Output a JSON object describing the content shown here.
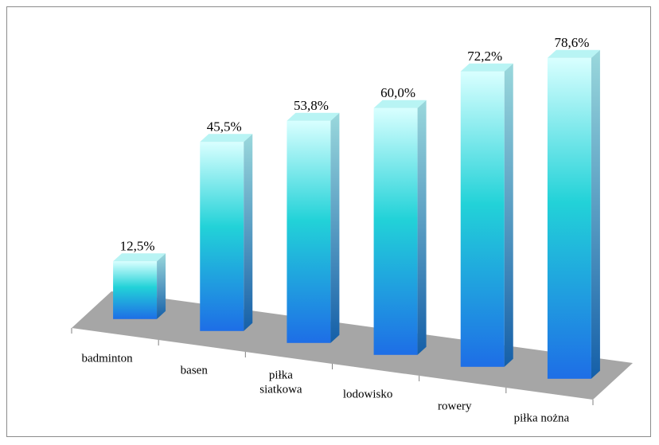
{
  "chart_data": {
    "type": "bar",
    "categories": [
      "badminton",
      "basen",
      "piłka siatkowa",
      "lodowisko",
      "rowery",
      "piłka nożna"
    ],
    "category_lines": [
      [
        "badminton"
      ],
      [
        "basen"
      ],
      [
        "piłka",
        "siatkowa"
      ],
      [
        "lodowisko"
      ],
      [
        "rowery"
      ],
      [
        "piłka nożna"
      ]
    ],
    "values": [
      12.5,
      45.5,
      53.8,
      60.0,
      72.2,
      78.6
    ],
    "value_labels": [
      "12,5%",
      "45,5%",
      "53,8%",
      "60,0%",
      "72,2%",
      "78,6%"
    ],
    "title": "",
    "xlabel": "",
    "ylabel": "",
    "ylim": [
      0,
      100
    ],
    "style": "3d-column-perspective",
    "colors": {
      "bar_top": "#d9ffff",
      "bar_mid": "#22d2d8",
      "bar_bottom": "#1e6ee6",
      "bar_side_top": "#9ad8dc",
      "bar_side_bottom": "#155fa8",
      "floor": "#a6a6a6",
      "frame": "#8c8c8c"
    }
  }
}
